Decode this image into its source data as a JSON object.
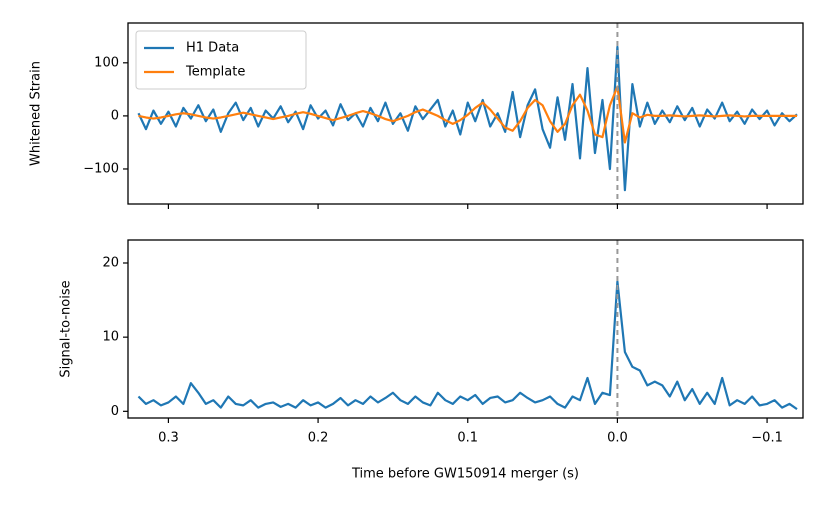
{
  "chart_data": [
    {
      "type": "line",
      "ylabel": "Whitened Strain",
      "xlim": [
        0.327,
        -0.124
      ],
      "ylim": [
        -166,
        175
      ],
      "xticks": [
        0.3,
        0.2,
        0.1,
        0,
        -0.1
      ],
      "show_xtick_labels": false,
      "yticks": [
        100,
        0,
        {
          "value": -100,
          "label": "−100"
        }
      ],
      "vline": 0,
      "legend": "upper left",
      "x": [
        0.32,
        0.315,
        0.31,
        0.305,
        0.3,
        0.295,
        0.29,
        0.285,
        0.28,
        0.275,
        0.27,
        0.265,
        0.26,
        0.255,
        0.25,
        0.245,
        0.24,
        0.235,
        0.23,
        0.225,
        0.22,
        0.215,
        0.21,
        0.205,
        0.2,
        0.195,
        0.19,
        0.185,
        0.18,
        0.175,
        0.17,
        0.165,
        0.16,
        0.155,
        0.15,
        0.145,
        0.14,
        0.135,
        0.13,
        0.125,
        0.12,
        0.115,
        0.11,
        0.105,
        0.1,
        0.095,
        0.09,
        0.085,
        0.08,
        0.075,
        0.07,
        0.065,
        0.06,
        0.055,
        0.05,
        0.045,
        0.04,
        0.035,
        0.03,
        0.025,
        0.02,
        0.015,
        0.01,
        0.005,
        0,
        -0.005,
        -0.01,
        -0.015,
        -0.02,
        -0.025,
        -0.03,
        -0.035,
        -0.04,
        -0.045,
        -0.05,
        -0.055,
        -0.06,
        -0.065,
        -0.07,
        -0.075,
        -0.08,
        -0.085,
        -0.09,
        -0.095,
        -0.1,
        -0.105,
        -0.11,
        -0.115,
        -0.12
      ],
      "series": [
        {
          "name": "H1 Data",
          "color": "#1f77b4",
          "values": [
            5,
            -25,
            10,
            -15,
            8,
            -20,
            15,
            -5,
            20,
            -10,
            12,
            -30,
            5,
            25,
            -8,
            15,
            -20,
            10,
            -5,
            18,
            -12,
            8,
            -25,
            20,
            -5,
            10,
            -18,
            22,
            -8,
            5,
            -20,
            15,
            -10,
            25,
            -15,
            5,
            -28,
            18,
            -6,
            12,
            30,
            -20,
            10,
            -35,
            25,
            -10,
            30,
            -20,
            5,
            -30,
            45,
            -40,
            20,
            50,
            -25,
            -60,
            35,
            -45,
            60,
            -80,
            90,
            -70,
            30,
            -100,
            130,
            -140,
            60,
            -20,
            25,
            -15,
            10,
            -12,
            18,
            -8,
            15,
            -20,
            12,
            -5,
            25,
            -10,
            8,
            -15,
            12,
            -6,
            10,
            -18,
            5,
            -10,
            3
          ]
        },
        {
          "name": "Template",
          "color": "#ff7f0e",
          "values": [
            0,
            -3,
            -5,
            -3,
            0,
            3,
            5,
            3,
            0,
            -3,
            -5,
            -3,
            0,
            3,
            6,
            3,
            0,
            -3,
            -6,
            -3,
            0,
            4,
            7,
            4,
            0,
            -4,
            -8,
            -4,
            0,
            5,
            9,
            5,
            0,
            -6,
            -10,
            -5,
            0,
            7,
            12,
            6,
            0,
            -8,
            -15,
            -8,
            2,
            15,
            25,
            12,
            -5,
            -22,
            -28,
            -10,
            15,
            30,
            20,
            -10,
            -30,
            -15,
            20,
            40,
            10,
            -35,
            -40,
            20,
            55,
            -50,
            5,
            -3,
            2,
            0,
            0,
            1,
            0,
            -1,
            0,
            1,
            0,
            -1,
            0,
            1,
            0,
            -1,
            0,
            0,
            0,
            0,
            0,
            0,
            0
          ]
        }
      ]
    },
    {
      "type": "line",
      "ylabel": "Signal-to-noise",
      "xlabel": "Time before GW150914 merger (s)",
      "xlim": [
        0.327,
        -0.124
      ],
      "ylim": [
        -0.9,
        23.1
      ],
      "xticks": [
        0.3,
        0.2,
        0.1,
        {
          "value": 0,
          "label": "0.0"
        },
        {
          "value": -0.1,
          "label": "−0.1"
        }
      ],
      "show_xtick_labels": true,
      "yticks": [
        0,
        10,
        20
      ],
      "vline": 0,
      "x": [
        0.32,
        0.315,
        0.31,
        0.305,
        0.3,
        0.295,
        0.29,
        0.285,
        0.28,
        0.275,
        0.27,
        0.265,
        0.26,
        0.255,
        0.25,
        0.245,
        0.24,
        0.235,
        0.23,
        0.225,
        0.22,
        0.215,
        0.21,
        0.205,
        0.2,
        0.195,
        0.19,
        0.185,
        0.18,
        0.175,
        0.17,
        0.165,
        0.16,
        0.155,
        0.15,
        0.145,
        0.14,
        0.135,
        0.13,
        0.125,
        0.12,
        0.115,
        0.11,
        0.105,
        0.1,
        0.095,
        0.09,
        0.085,
        0.08,
        0.075,
        0.07,
        0.065,
        0.06,
        0.055,
        0.05,
        0.045,
        0.04,
        0.035,
        0.03,
        0.025,
        0.02,
        0.015,
        0.01,
        0.005,
        0,
        -0.005,
        -0.01,
        -0.015,
        -0.02,
        -0.025,
        -0.03,
        -0.035,
        -0.04,
        -0.045,
        -0.05,
        -0.055,
        -0.06,
        -0.065,
        -0.07,
        -0.075,
        -0.08,
        -0.085,
        -0.09,
        -0.095,
        -0.1,
        -0.105,
        -0.11,
        -0.115,
        -0.12
      ],
      "series": [
        {
          "color": "#1f77b4",
          "values": [
            2,
            1,
            1.5,
            0.8,
            1.2,
            2,
            1,
            3.8,
            2.5,
            1,
            1.5,
            0.5,
            2,
            1,
            0.8,
            1.5,
            0.5,
            1,
            1.2,
            0.6,
            1,
            0.5,
            1.5,
            0.8,
            1.2,
            0.5,
            1,
            1.8,
            0.8,
            1.5,
            1,
            2,
            1.2,
            1.8,
            2.5,
            1.5,
            1,
            2,
            1.2,
            0.8,
            2.5,
            1.5,
            1,
            2,
            1.5,
            2.2,
            1,
            1.8,
            2,
            1.2,
            1.5,
            2.5,
            1.8,
            1.2,
            1.5,
            2,
            1,
            0.5,
            2,
            1.5,
            4.5,
            1,
            2.5,
            2.2,
            17.5,
            8,
            6,
            5.5,
            3.5,
            4,
            3.5,
            2,
            4,
            1.5,
            3,
            1,
            2.5,
            1,
            4.5,
            0.8,
            1.5,
            1,
            2,
            0.8,
            1,
            1.5,
            0.5,
            1,
            0.3
          ]
        }
      ]
    }
  ]
}
